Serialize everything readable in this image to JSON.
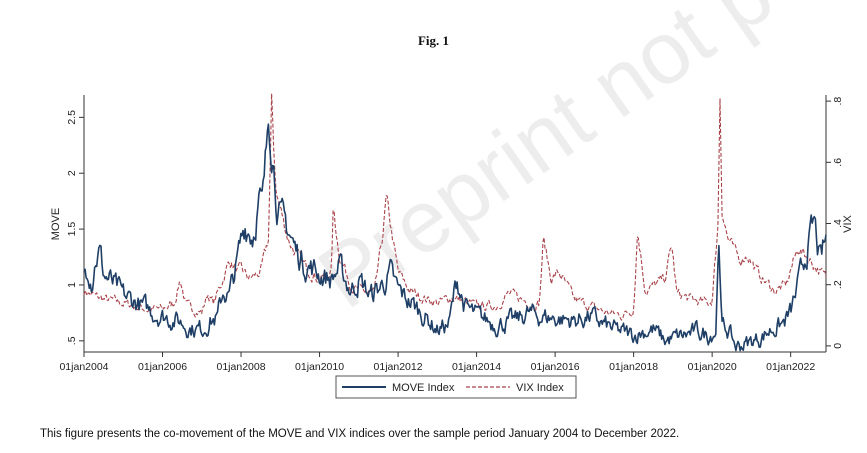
{
  "figure": {
    "title": "Fig. 1",
    "caption": "This figure presents the co-movement of the MOVE and VIX indices over the sample period January 2004 to December 2022.",
    "watermark": "Preprint not peer reviewed"
  },
  "colors": {
    "move": "#1f3f66",
    "vix": "#a8434a",
    "axis": "#333333",
    "background": "#ffffff"
  },
  "chart_data": {
    "type": "line",
    "title": "Fig. 1",
    "x_range": [
      2004.0,
      2022.9
    ],
    "x_ticks": [
      {
        "value": 2004,
        "label": "01jan2004"
      },
      {
        "value": 2006,
        "label": "01jan2006"
      },
      {
        "value": 2008,
        "label": "01jan2008"
      },
      {
        "value": 2010,
        "label": "01jan2010"
      },
      {
        "value": 2012,
        "label": "01jan2012"
      },
      {
        "value": 2014,
        "label": "01jan2014"
      },
      {
        "value": 2016,
        "label": "01jan2016"
      },
      {
        "value": 2018,
        "label": "01jan2018"
      },
      {
        "value": 2020,
        "label": "01jan2020"
      },
      {
        "value": 2022,
        "label": "01jan2022"
      }
    ],
    "left_axis": {
      "label": "MOVE",
      "range": [
        0.4,
        2.7
      ],
      "ticks": [
        {
          "value": 0.5,
          "label": ".5"
        },
        {
          "value": 1,
          "label": "1"
        },
        {
          "value": 1.5,
          "label": "1.5"
        },
        {
          "value": 2,
          "label": "2"
        },
        {
          "value": 2.5,
          "label": "2.5"
        }
      ]
    },
    "right_axis": {
      "label": "VIX",
      "range": [
        -0.02,
        0.82
      ],
      "ticks": [
        {
          "value": 0,
          "label": "0"
        },
        {
          "value": 0.2,
          "label": ".2"
        },
        {
          "value": 0.4,
          "label": ".4"
        },
        {
          "value": 0.6,
          "label": ".6"
        },
        {
          "value": 0.8,
          "label": ".8"
        }
      ]
    },
    "legend": {
      "placement": "bottom",
      "move_label": "MOVE Index",
      "vix_label": "VIX Index"
    },
    "series": [
      {
        "name": "MOVE Index",
        "axis": "left",
        "style": "solid",
        "x": [
          2004.0,
          2004.1,
          2004.2,
          2004.3,
          2004.4,
          2004.5,
          2004.75,
          2005.0,
          2005.3,
          2005.6,
          2006.0,
          2006.4,
          2006.7,
          2007.0,
          2007.2,
          2007.4,
          2007.55,
          2007.7,
          2007.9,
          2008.1,
          2008.3,
          2008.45,
          2008.55,
          2008.65,
          2008.7,
          2008.75,
          2008.8,
          2008.9,
          2009.0,
          2009.2,
          2009.4,
          2009.6,
          2009.8,
          2010.0,
          2010.3,
          2010.5,
          2010.8,
          2011.0,
          2011.3,
          2011.6,
          2011.8,
          2012.0,
          2012.3,
          2012.6,
          2013.0,
          2013.3,
          2013.5,
          2013.7,
          2014.0,
          2014.5,
          2015.0,
          2015.3,
          2015.6,
          2016.0,
          2016.5,
          2016.9,
          2017.2,
          2017.5,
          2018.0,
          2018.2,
          2018.5,
          2018.8,
          2019.0,
          2019.3,
          2019.6,
          2019.9,
          2020.1,
          2020.17,
          2020.21,
          2020.25,
          2020.4,
          2020.6,
          2020.9,
          2021.2,
          2021.5,
          2021.8,
          2022.0,
          2022.2,
          2022.4,
          2022.6,
          2022.75,
          2022.9
        ],
        "y": [
          1.1,
          1.2,
          1.05,
          1.25,
          1.3,
          1.1,
          1.0,
          0.9,
          0.85,
          0.78,
          0.72,
          0.68,
          0.62,
          0.6,
          0.68,
          0.7,
          0.95,
          0.9,
          1.2,
          1.55,
          1.45,
          1.75,
          1.7,
          2.2,
          2.62,
          2.4,
          2.25,
          1.8,
          1.6,
          1.5,
          1.3,
          1.2,
          1.15,
          1.1,
          1.05,
          1.15,
          0.95,
          1.05,
          0.9,
          1.0,
          1.1,
          0.95,
          0.85,
          0.75,
          0.6,
          0.65,
          1.05,
          0.8,
          0.72,
          0.65,
          0.68,
          0.75,
          0.72,
          0.7,
          0.68,
          0.72,
          0.65,
          0.6,
          0.55,
          0.58,
          0.6,
          0.5,
          0.52,
          0.55,
          0.58,
          0.55,
          0.6,
          1.55,
          0.9,
          0.62,
          0.6,
          0.45,
          0.48,
          0.52,
          0.6,
          0.65,
          0.75,
          1.0,
          1.3,
          1.55,
          1.2,
          1.4
        ]
      },
      {
        "name": "VIX Index",
        "axis": "right",
        "style": "dashed",
        "x": [
          2004.0,
          2004.3,
          2004.6,
          2005.0,
          2005.3,
          2005.6,
          2006.0,
          2006.3,
          2006.45,
          2006.6,
          2007.0,
          2007.15,
          2007.3,
          2007.55,
          2007.7,
          2007.9,
          2008.0,
          2008.2,
          2008.5,
          2008.7,
          2008.78,
          2008.85,
          2008.9,
          2009.0,
          2009.2,
          2009.4,
          2009.7,
          2010.0,
          2010.3,
          2010.35,
          2010.5,
          2010.8,
          2011.0,
          2011.4,
          2011.6,
          2011.7,
          2011.9,
          2012.0,
          2012.3,
          2012.6,
          2013.0,
          2013.4,
          2013.8,
          2014.0,
          2014.5,
          2014.8,
          2015.0,
          2015.4,
          2015.6,
          2015.7,
          2015.9,
          2016.1,
          2016.5,
          2016.9,
          2017.3,
          2017.7,
          2018.0,
          2018.1,
          2018.3,
          2018.8,
          2018.97,
          2019.1,
          2019.5,
          2019.9,
          2020.0,
          2020.15,
          2020.2,
          2020.25,
          2020.4,
          2020.7,
          2020.9,
          2021.2,
          2021.6,
          2021.9,
          2022.0,
          2022.2,
          2022.5,
          2022.7,
          2022.9
        ],
        "y": [
          0.18,
          0.16,
          0.15,
          0.14,
          0.13,
          0.12,
          0.12,
          0.14,
          0.22,
          0.13,
          0.11,
          0.17,
          0.14,
          0.22,
          0.28,
          0.24,
          0.25,
          0.22,
          0.24,
          0.35,
          0.8,
          0.6,
          0.5,
          0.45,
          0.35,
          0.3,
          0.25,
          0.22,
          0.24,
          0.45,
          0.3,
          0.2,
          0.18,
          0.17,
          0.35,
          0.48,
          0.32,
          0.24,
          0.18,
          0.16,
          0.14,
          0.16,
          0.14,
          0.13,
          0.13,
          0.17,
          0.16,
          0.14,
          0.14,
          0.35,
          0.22,
          0.24,
          0.15,
          0.13,
          0.11,
          0.1,
          0.12,
          0.38,
          0.18,
          0.22,
          0.33,
          0.17,
          0.15,
          0.14,
          0.15,
          0.4,
          0.82,
          0.45,
          0.35,
          0.28,
          0.3,
          0.23,
          0.18,
          0.2,
          0.25,
          0.32,
          0.28,
          0.25,
          0.22
        ]
      }
    ]
  }
}
